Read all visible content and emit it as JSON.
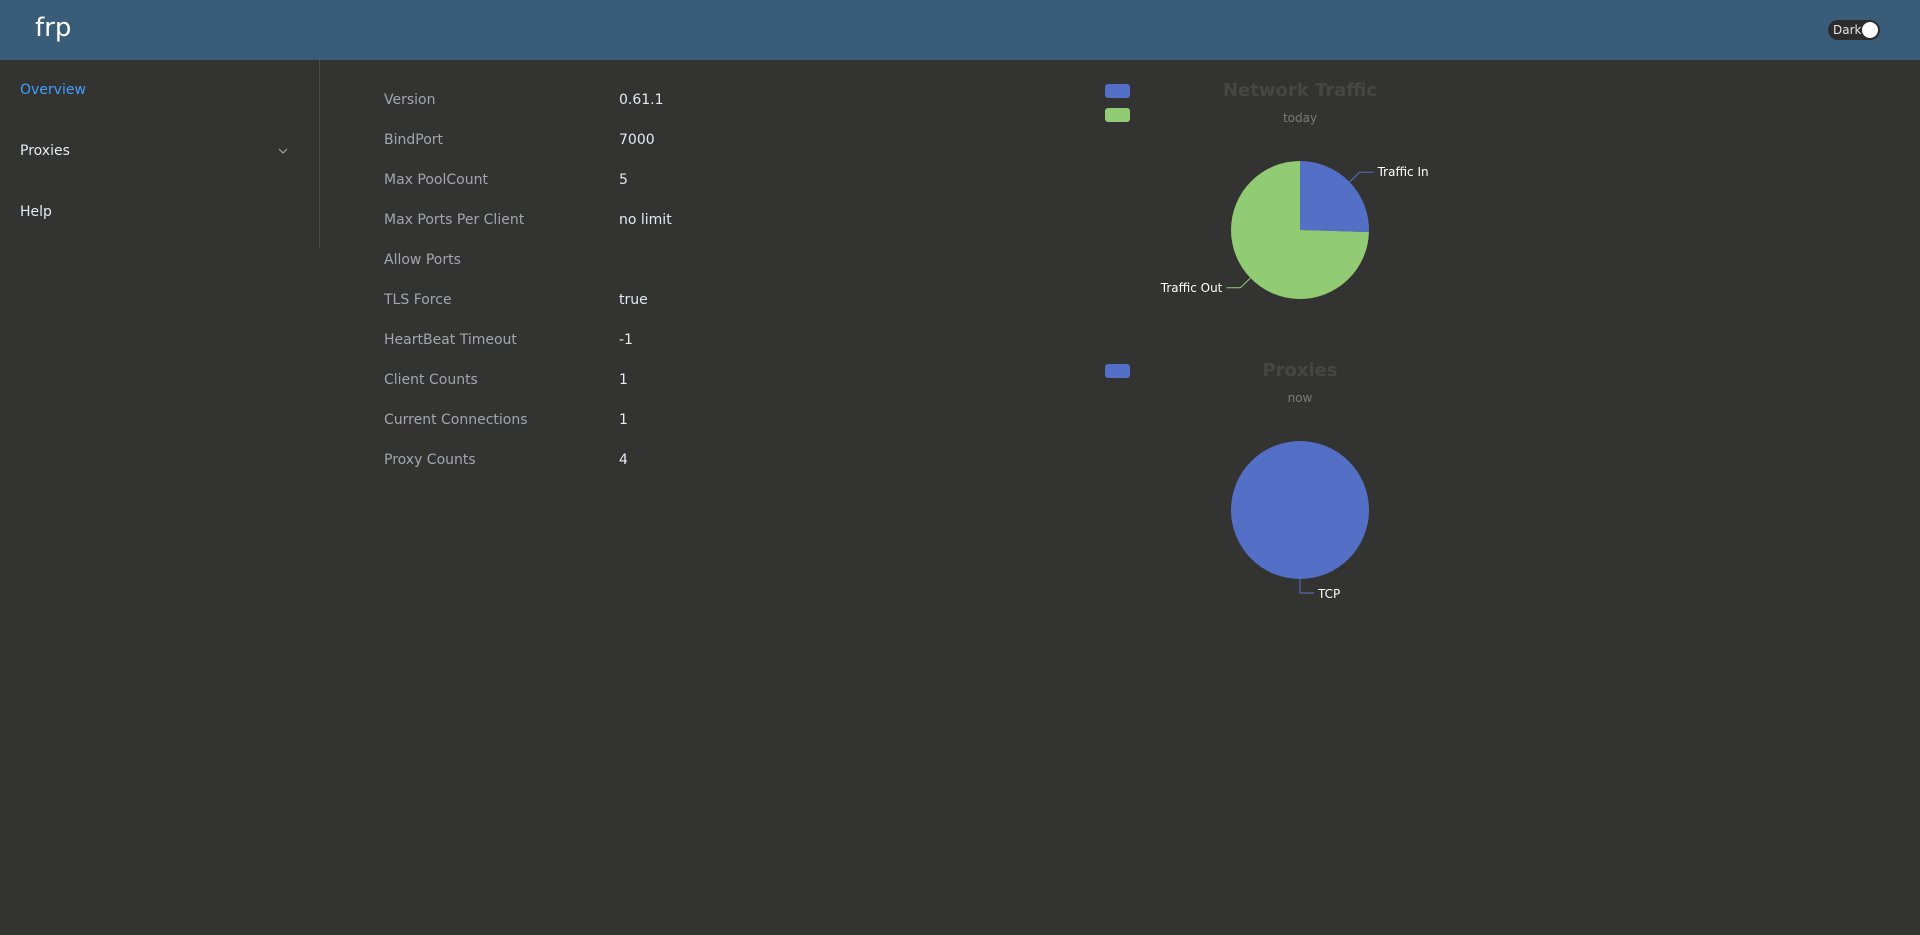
{
  "header": {
    "brand": "frp",
    "theme_toggle_label": "Dark",
    "background": "#395c78"
  },
  "sidebar": {
    "items": [
      {
        "label": "Overview",
        "active": true
      },
      {
        "label": "Proxies",
        "expandable": true
      },
      {
        "label": "Help"
      }
    ],
    "active_color": "#409eff"
  },
  "server_info": [
    {
      "key": "Version",
      "value": "0.61.1"
    },
    {
      "key": "BindPort",
      "value": "7000"
    },
    {
      "key": "Max PoolCount",
      "value": "5"
    },
    {
      "key": "Max Ports Per Client",
      "value": "no limit"
    },
    {
      "key": "Allow Ports",
      "value": ""
    },
    {
      "key": "TLS Force",
      "value": "true"
    },
    {
      "key": "HeartBeat Timeout",
      "value": "-1"
    },
    {
      "key": "Client Counts",
      "value": "1"
    },
    {
      "key": "Current Connections",
      "value": "1"
    },
    {
      "key": "Proxy Counts",
      "value": "4"
    }
  ],
  "chart_data": [
    {
      "type": "pie",
      "title": "Network Traffic",
      "subtitle": "today",
      "legend": "top-left",
      "slices": [
        {
          "label": "Traffic In",
          "value": 25.5,
          "color": "#5470c6"
        },
        {
          "label": "Traffic Out",
          "value": 74.5,
          "color": "#91cc75"
        }
      ]
    },
    {
      "type": "pie",
      "title": "Proxies",
      "subtitle": "now",
      "legend": "top-left",
      "slices": [
        {
          "label": "TCP",
          "value": 4,
          "color": "#5470c6"
        }
      ]
    }
  ]
}
